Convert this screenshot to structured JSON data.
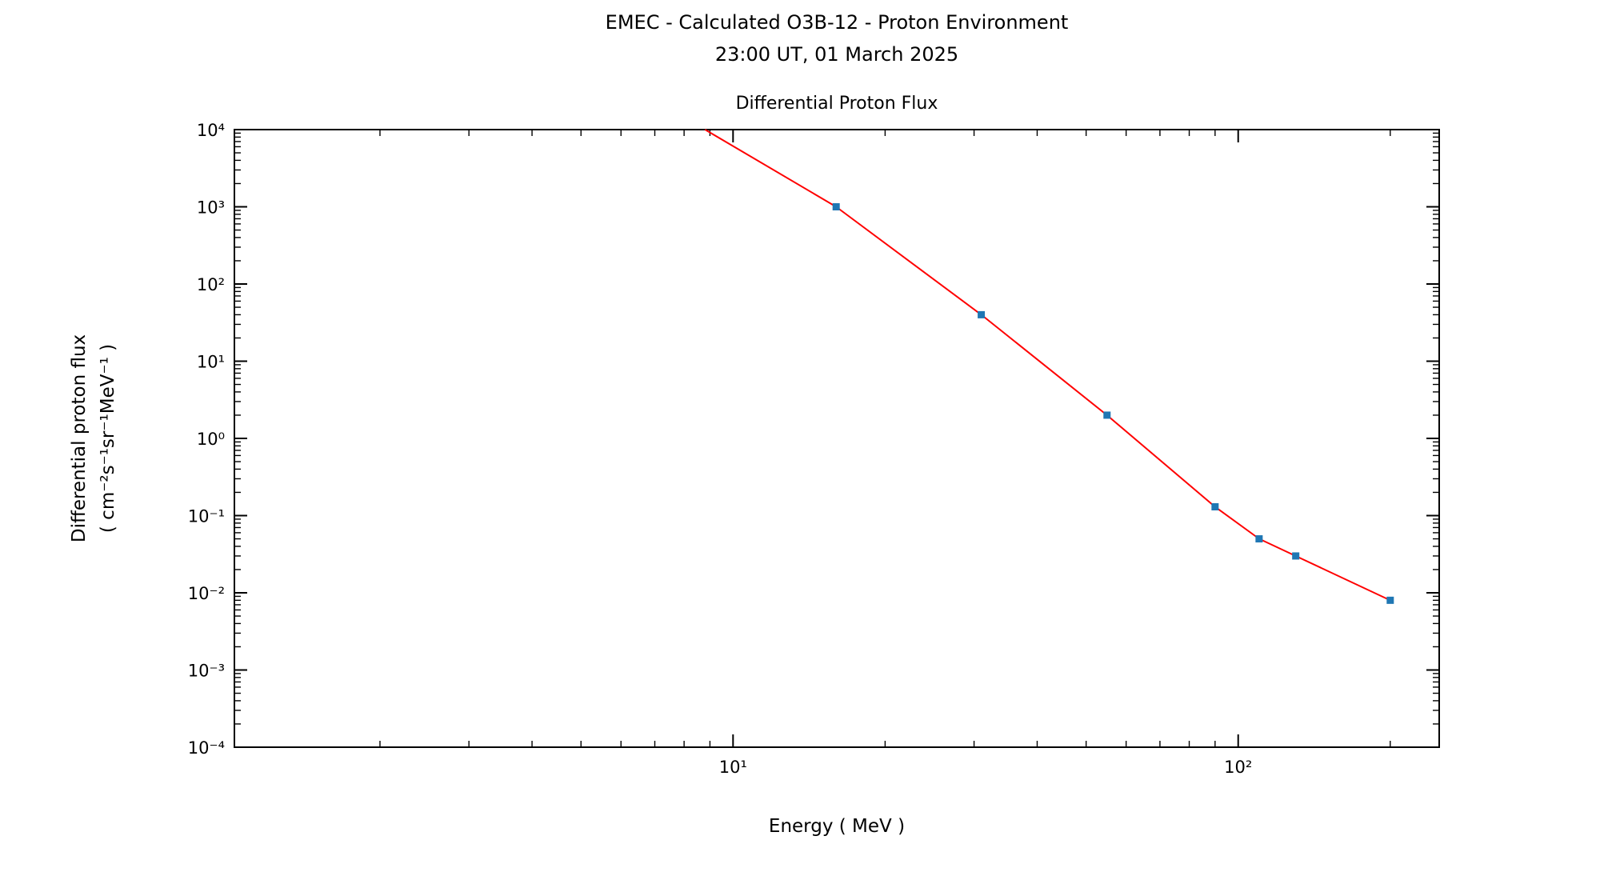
{
  "figure": {
    "suptitle_line1": "EMEC - Calculated O3B-12 - Proton Environment",
    "suptitle_line2": "23:00 UT, 01 March 2025",
    "axes_title": "Differential Proton Flux",
    "xlabel": "Energy ( MeV )",
    "ylabel_line1": "Differential proton flux",
    "ylabel_line2": "( cm⁻²s⁻¹sr⁻¹MeV⁻¹ )",
    "background_color": "#ffffff",
    "axis_color": "#000000"
  },
  "chart_data": {
    "type": "line",
    "title": "Differential Proton Flux",
    "xlabel": "Energy ( MeV )",
    "ylabel": "Differential proton flux ( cm⁻²s⁻¹sr⁻¹MeV⁻¹ )",
    "x_scale": "log",
    "y_scale": "log",
    "xlim": [
      1.03,
      250
    ],
    "ylim": [
      0.0001,
      10000
    ],
    "grid": false,
    "legend": false,
    "x_major_ticks": [
      {
        "value": 10,
        "label": "10¹"
      },
      {
        "value": 100,
        "label": "10²"
      }
    ],
    "y_major_ticks": [
      {
        "value": 10000,
        "label": "10⁴"
      },
      {
        "value": 1000,
        "label": "10³"
      },
      {
        "value": 100,
        "label": "10²"
      },
      {
        "value": 10,
        "label": "10¹"
      },
      {
        "value": 1,
        "label": "10⁰"
      },
      {
        "value": 0.1,
        "label": "10⁻¹"
      },
      {
        "value": 0.01,
        "label": "10⁻²"
      },
      {
        "value": 0.001,
        "label": "10⁻³"
      },
      {
        "value": 0.0001,
        "label": "10⁻⁴"
      }
    ],
    "series": [
      {
        "name": "Differential proton flux",
        "line_color": "#ff0000",
        "marker_color": "#1f77b4",
        "marker": "square",
        "points": [
          {
            "x": 8.8,
            "y": 10000,
            "marker": false
          },
          {
            "x": 16,
            "y": 1000,
            "marker": true
          },
          {
            "x": 31,
            "y": 40,
            "marker": true
          },
          {
            "x": 55,
            "y": 2,
            "marker": true
          },
          {
            "x": 90,
            "y": 0.13,
            "marker": true
          },
          {
            "x": 110,
            "y": 0.05,
            "marker": true
          },
          {
            "x": 130,
            "y": 0.03,
            "marker": true
          },
          {
            "x": 200,
            "y": 0.008,
            "marker": true
          }
        ]
      }
    ]
  }
}
